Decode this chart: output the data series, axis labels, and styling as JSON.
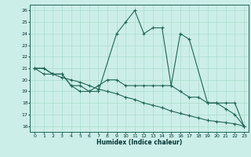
{
  "xlabel": "Humidex (Indice chaleur)",
  "bg_color": "#cceee8",
  "grid_color": "#aaddcc",
  "line_color": "#226655",
  "xlim": [
    -0.5,
    23.5
  ],
  "ylim": [
    15.5,
    26.5
  ],
  "xticks": [
    0,
    1,
    2,
    3,
    4,
    5,
    6,
    7,
    8,
    9,
    10,
    11,
    12,
    13,
    14,
    15,
    16,
    17,
    18,
    19,
    20,
    21,
    22,
    23
  ],
  "yticks": [
    16,
    17,
    18,
    19,
    20,
    21,
    22,
    23,
    24,
    25,
    26
  ],
  "line1_x": [
    0,
    1,
    2,
    3,
    4,
    5,
    6,
    7,
    9,
    10,
    11,
    12,
    13,
    14,
    15,
    16,
    17,
    19,
    20,
    21,
    22,
    23
  ],
  "line1_y": [
    21,
    21,
    20.5,
    20.5,
    19.5,
    19.5,
    19.0,
    19.0,
    24.0,
    25.0,
    26.0,
    24.0,
    24.5,
    24.5,
    19.5,
    24.0,
    23.5,
    18.0,
    18.0,
    17.5,
    17.0,
    16.0
  ],
  "line2_x": [
    0,
    1,
    2,
    3,
    4,
    5,
    6,
    7,
    8,
    9,
    10,
    11,
    12,
    13,
    14,
    15,
    16,
    17,
    18,
    19,
    20,
    21,
    22,
    23
  ],
  "line2_y": [
    21.0,
    21.0,
    20.5,
    20.2,
    20.0,
    19.8,
    19.5,
    19.2,
    19.0,
    18.8,
    18.5,
    18.3,
    18.0,
    17.8,
    17.6,
    17.3,
    17.1,
    16.9,
    16.7,
    16.5,
    16.4,
    16.3,
    16.2,
    16.0
  ],
  "line3_x": [
    0,
    1,
    2,
    3,
    4,
    5,
    6,
    7,
    8,
    9,
    10,
    11,
    12,
    13,
    14,
    15,
    16,
    17,
    18,
    19,
    20,
    21,
    22,
    23
  ],
  "line3_y": [
    21.0,
    20.5,
    20.5,
    20.5,
    19.5,
    19.0,
    19.0,
    19.5,
    20.0,
    20.0,
    19.5,
    19.5,
    19.5,
    19.5,
    19.5,
    19.5,
    19.0,
    18.5,
    18.5,
    18.0,
    18.0,
    18.0,
    18.0,
    16.0
  ]
}
